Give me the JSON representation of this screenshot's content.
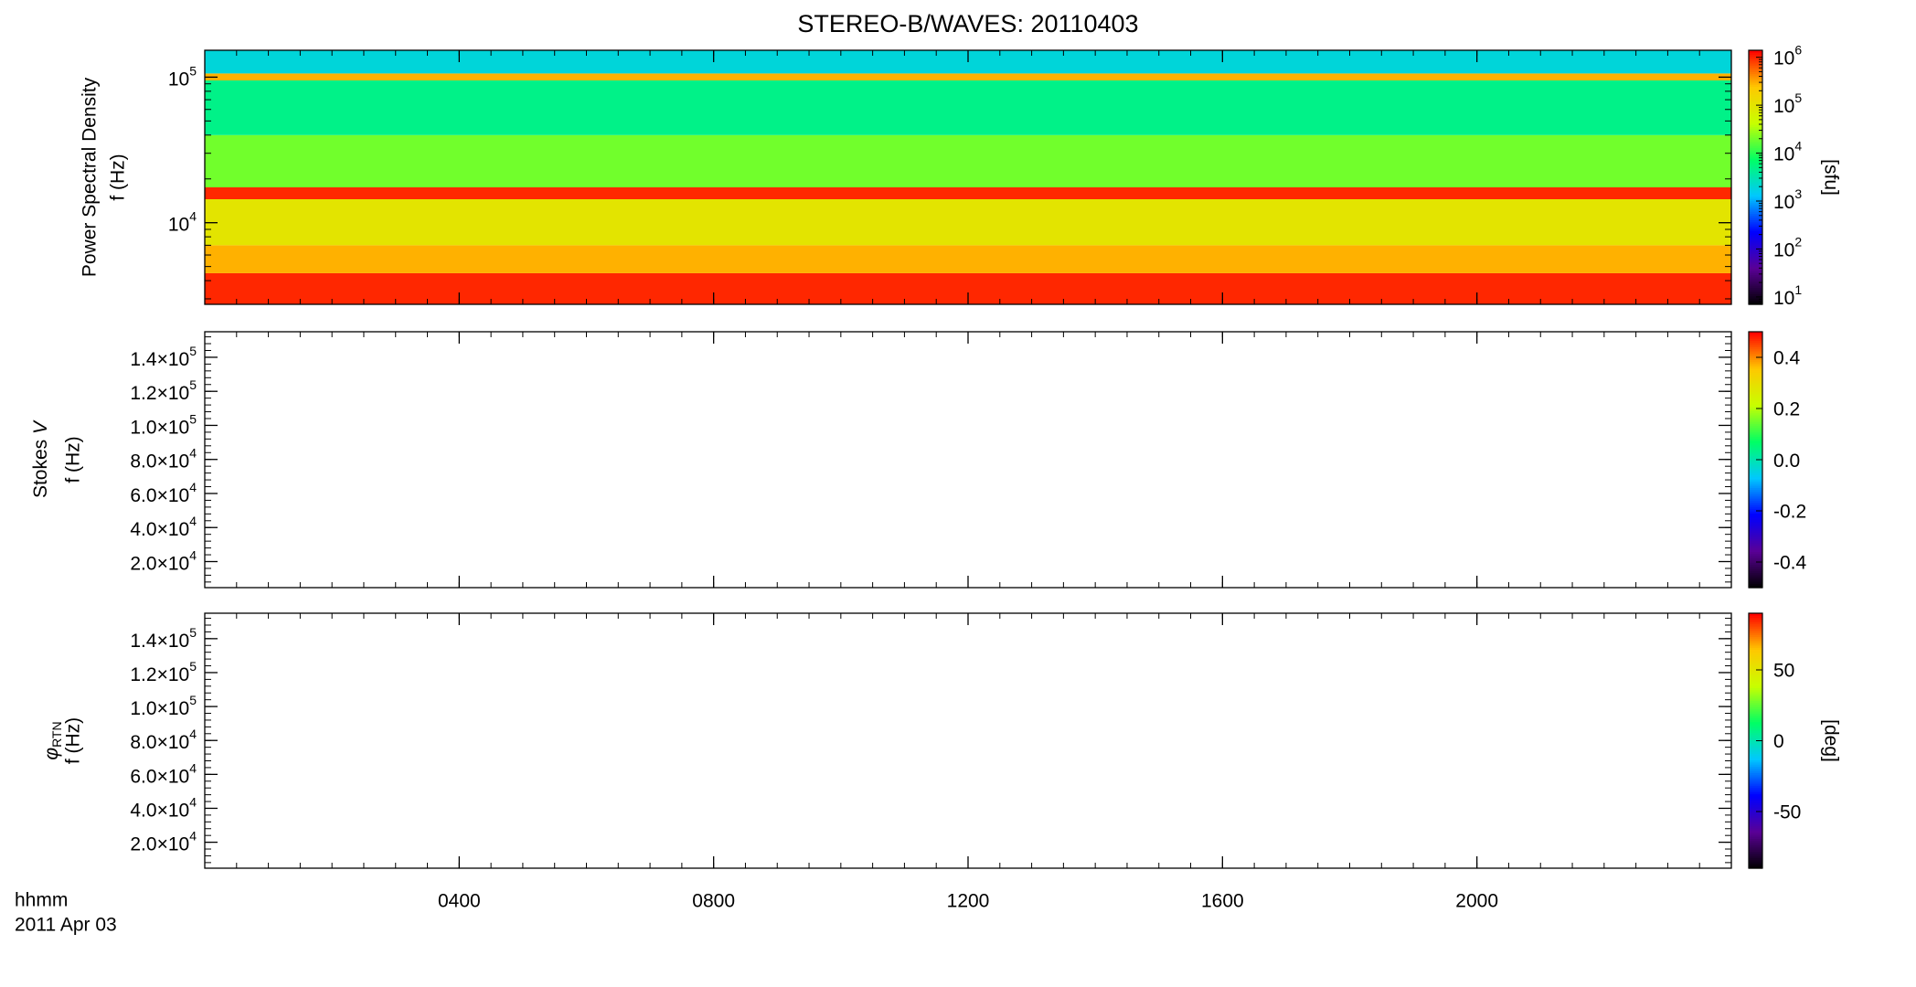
{
  "title": "STEREO-B/WAVES: 20110403",
  "x_axis_title": "hhmm",
  "date": "2011 Apr 03",
  "colormap": [
    "#000000",
    "#5a0096",
    "#0000ff",
    "#00c8ff",
    "#00ff64",
    "#c8ff00",
    "#ffc800",
    "#ff0000"
  ],
  "chart_data": [
    {
      "type": "heatmap",
      "y_label": [
        "Power Spectral Density",
        "f (Hz)"
      ],
      "xlim": [
        0,
        24
      ],
      "xticks": [
        4,
        8,
        12,
        16,
        20
      ],
      "ylog": true,
      "ylim": [
        2750,
        153000
      ],
      "yticks": [
        {
          "value": 10000,
          "label": "10",
          "sup": "4"
        },
        {
          "value": 100000,
          "label": "10",
          "sup": "5"
        }
      ],
      "freq_edges": [
        2750,
        4500,
        7000,
        14500,
        17500,
        40000,
        95000,
        106000,
        153000
      ],
      "values": [
        1000000,
        300000,
        100000,
        1000000,
        20000,
        5000,
        300000,
        2000
      ],
      "colorbar": {
        "log": true,
        "lim": [
          7,
          1400000
        ],
        "ticks": [
          {
            "value": 10,
            "label": "10",
            "sup": "1"
          },
          {
            "value": 100,
            "label": "10",
            "sup": "2"
          },
          {
            "value": 1000,
            "label": "10",
            "sup": "3"
          },
          {
            "value": 10000,
            "label": "10",
            "sup": "4"
          },
          {
            "value": 100000,
            "label": "10",
            "sup": "5"
          },
          {
            "value": 1000000,
            "label": "10",
            "sup": "6"
          }
        ],
        "label": "[sfu]"
      }
    },
    {
      "type": "heatmap",
      "y_label": [
        {
          "text": "Stokes ",
          "italic": "V"
        },
        "f (Hz)"
      ],
      "xlim": [
        0,
        24
      ],
      "xticks": [
        4,
        8,
        12,
        16,
        20
      ],
      "ylim": [
        4700,
        155000
      ],
      "yticks": [
        {
          "value": 140000,
          "label": "1.4×10",
          "sup": "5"
        },
        {
          "value": 120000,
          "label": "1.2×10",
          "sup": "5"
        },
        {
          "value": 100000,
          "label": "1.0×10",
          "sup": "5"
        },
        {
          "value": 80000,
          "label": "8.0×10",
          "sup": "4"
        },
        {
          "value": 60000,
          "label": "6.0×10",
          "sup": "4"
        },
        {
          "value": 40000,
          "label": "4.0×10",
          "sup": "4"
        },
        {
          "value": 20000,
          "label": "2.0×10",
          "sup": "4"
        }
      ],
      "colorbar": {
        "lim": [
          -0.5,
          0.5
        ],
        "ticks": [
          0.4,
          0.2,
          {
            "value": 0,
            "label": "0.0"
          },
          -0.2,
          -0.4
        ]
      }
    },
    {
      "type": "heatmap",
      "y_label": [
        {
          "text": "φ",
          "sub": "RTN"
        },
        "f (Hz)"
      ],
      "xlim": [
        0,
        24
      ],
      "xticks": [
        {
          "value": 4,
          "label": "0400"
        },
        {
          "value": 8,
          "label": "0800"
        },
        {
          "value": 12,
          "label": "1200"
        },
        {
          "value": 16,
          "label": "1600"
        },
        {
          "value": 20,
          "label": "2000"
        }
      ],
      "ylim": [
        4700,
        155000
      ],
      "yticks": [
        {
          "value": 140000,
          "label": "1.4×10",
          "sup": "5"
        },
        {
          "value": 120000,
          "label": "1.2×10",
          "sup": "5"
        },
        {
          "value": 100000,
          "label": "1.0×10",
          "sup": "5"
        },
        {
          "value": 80000,
          "label": "8.0×10",
          "sup": "4"
        },
        {
          "value": 60000,
          "label": "6.0×10",
          "sup": "4"
        },
        {
          "value": 40000,
          "label": "4.0×10",
          "sup": "4"
        },
        {
          "value": 20000,
          "label": "2.0×10",
          "sup": "4"
        }
      ],
      "colorbar": {
        "lim": [
          -90,
          90
        ],
        "ticks": [
          50,
          0,
          -50
        ],
        "label": "[deg]"
      }
    }
  ]
}
